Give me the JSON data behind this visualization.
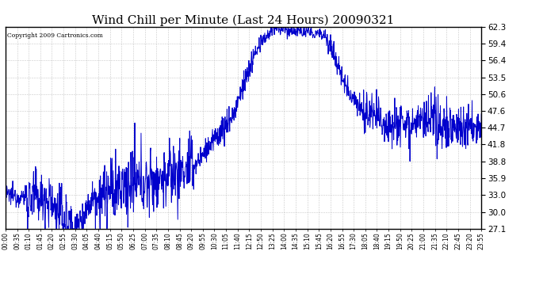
{
  "title": "Wind Chill per Minute (Last 24 Hours) 20090321",
  "copyright_text": "Copyright 2009 Cartronics.com",
  "y_ticks": [
    27.1,
    30.0,
    33.0,
    35.9,
    38.8,
    41.8,
    44.7,
    47.6,
    50.6,
    53.5,
    56.4,
    59.4,
    62.3
  ],
  "x_tick_labels": [
    "00:00",
    "00:35",
    "01:10",
    "01:45",
    "02:20",
    "02:55",
    "03:30",
    "04:05",
    "04:40",
    "05:15",
    "05:50",
    "06:25",
    "07:00",
    "07:35",
    "08:10",
    "08:45",
    "09:20",
    "09:55",
    "10:30",
    "11:05",
    "11:40",
    "12:15",
    "12:50",
    "13:25",
    "14:00",
    "14:35",
    "15:10",
    "15:45",
    "16:20",
    "16:55",
    "17:30",
    "18:05",
    "18:40",
    "19:15",
    "19:50",
    "20:25",
    "21:00",
    "21:35",
    "22:10",
    "22:45",
    "23:20",
    "23:55"
  ],
  "line_color": "#0000cc",
  "background_color": "#ffffff",
  "grid_color": "#bbbbbb",
  "title_fontsize": 11,
  "ymin": 27.1,
  "ymax": 62.3
}
